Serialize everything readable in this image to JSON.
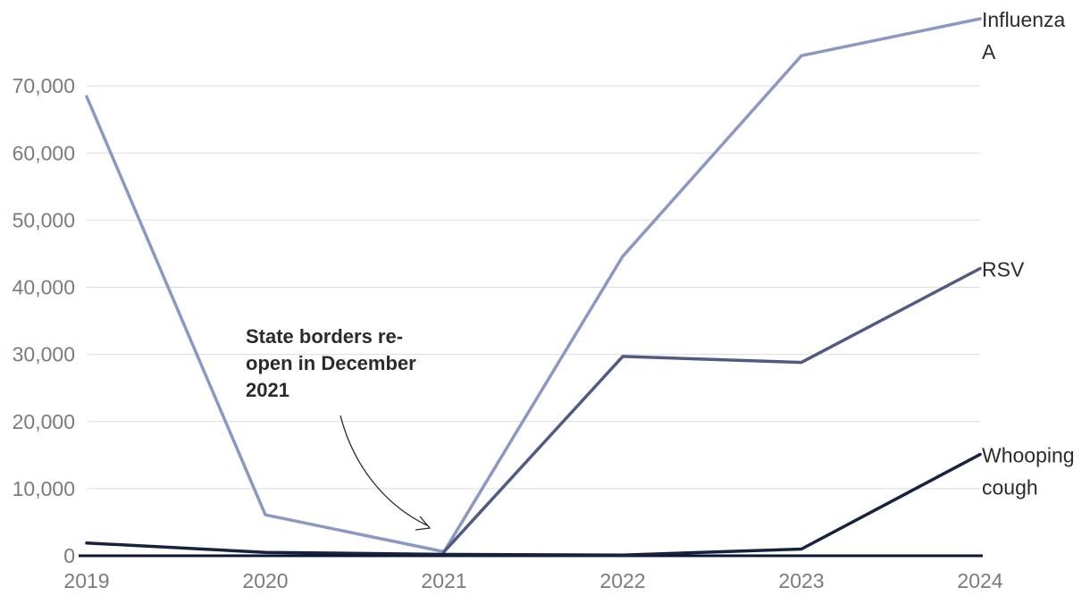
{
  "chart_data": {
    "type": "line",
    "x": [
      "2019",
      "2020",
      "2021",
      "2022",
      "2023",
      "2024"
    ],
    "ylim": [
      0,
      80000
    ],
    "yticks": [
      0,
      10000,
      20000,
      30000,
      40000,
      50000,
      60000,
      70000
    ],
    "ytick_labels": [
      "0",
      "10,000",
      "20,000",
      "30,000",
      "40,000",
      "50,000",
      "60,000",
      "70,000"
    ],
    "grid": true,
    "legend": "direct labels at line ends",
    "series": [
      {
        "name": "Influenza A",
        "label_lines": [
          "Influenza",
          "A"
        ],
        "color": "#8c98c4",
        "values": [
          68400,
          6100,
          600,
          44600,
          74500,
          80000
        ]
      },
      {
        "name": "RSV",
        "label_lines": [
          "RSV"
        ],
        "color": "#505b83",
        "values": [
          null,
          null,
          600,
          29700,
          28800,
          42800
        ]
      },
      {
        "name": "Whooping cough",
        "label_lines": [
          "Whooping",
          "cough"
        ],
        "color": "#17223f",
        "values": [
          1900,
          500,
          200,
          100,
          1000,
          15100
        ]
      }
    ],
    "annotation": {
      "lines": [
        "State borders re-",
        "open in December",
        "2021"
      ]
    }
  }
}
